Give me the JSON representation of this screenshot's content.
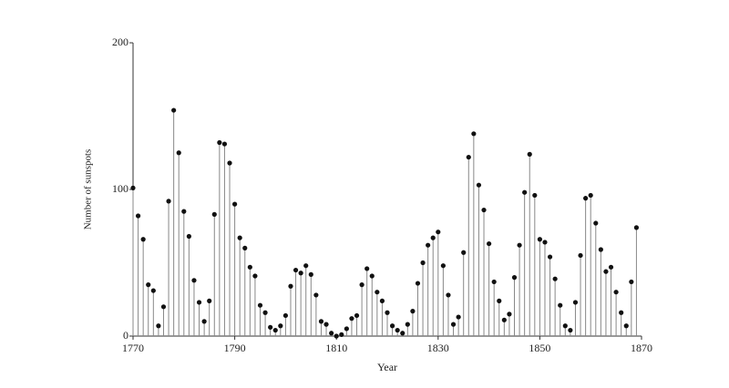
{
  "chart_data": {
    "type": "stem",
    "x_label": "Year",
    "y_label": "Number of sunspots",
    "x": [
      1770,
      1771,
      1772,
      1773,
      1774,
      1775,
      1776,
      1777,
      1778,
      1779,
      1780,
      1781,
      1782,
      1783,
      1784,
      1785,
      1786,
      1787,
      1788,
      1789,
      1790,
      1791,
      1792,
      1793,
      1794,
      1795,
      1796,
      1797,
      1798,
      1799,
      1800,
      1801,
      1802,
      1803,
      1804,
      1805,
      1806,
      1807,
      1808,
      1809,
      1810,
      1811,
      1812,
      1813,
      1814,
      1815,
      1816,
      1817,
      1818,
      1819,
      1820,
      1821,
      1822,
      1823,
      1824,
      1825,
      1826,
      1827,
      1828,
      1829,
      1830,
      1831,
      1832,
      1833,
      1834,
      1835,
      1836,
      1837,
      1838,
      1839,
      1840,
      1841,
      1842,
      1843,
      1844,
      1845,
      1846,
      1847,
      1848,
      1849,
      1850,
      1851,
      1852,
      1853,
      1854,
      1855,
      1856,
      1857,
      1858,
      1859,
      1860,
      1861,
      1862,
      1863,
      1864,
      1865,
      1866,
      1867,
      1868,
      1869
    ],
    "values": [
      101,
      82,
      66,
      35,
      31,
      7,
      20,
      92,
      154,
      125,
      85,
      68,
      38,
      23,
      10,
      24,
      83,
      132,
      131,
      118,
      90,
      67,
      60,
      47,
      41,
      21,
      16,
      6,
      4,
      7,
      14,
      34,
      45,
      43,
      48,
      42,
      28,
      10,
      8,
      2,
      0,
      1,
      5,
      12,
      14,
      35,
      46,
      41,
      30,
      24,
      16,
      7,
      4,
      2,
      8,
      17,
      36,
      50,
      62,
      67,
      71,
      48,
      28,
      8,
      13,
      57,
      122,
      138,
      103,
      86,
      63,
      37,
      24,
      11,
      15,
      40,
      62,
      98,
      124,
      96,
      66,
      64,
      54,
      39,
      21,
      7,
      4,
      23,
      55,
      94,
      96,
      77,
      59,
      44,
      47,
      30,
      16,
      7,
      37,
      74
    ],
    "color": "#111111",
    "stem_color": "#888888",
    "xlim": [
      1770,
      1870
    ],
    "xticks": [
      1770,
      1790,
      1810,
      1830,
      1850,
      1870
    ],
    "ylim": [
      0,
      200
    ],
    "yticks": [
      0,
      100,
      200
    ]
  }
}
